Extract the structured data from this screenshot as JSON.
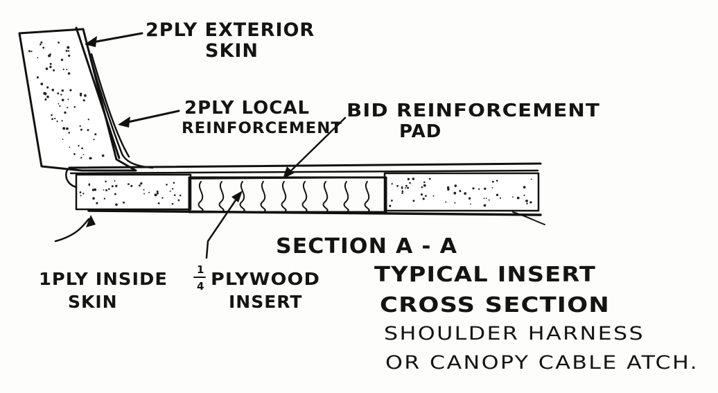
{
  "labels": {
    "exterior_skin": [
      "2PLY EXTERIOR",
      "SKIN"
    ],
    "local_reinforcement": [
      "2PLY LOCAL",
      "REINFORCEMENT"
    ],
    "bid_pad": [
      "BID REINFORCEMENT",
      "PAD"
    ],
    "inside_skin": [
      "1PLY INSIDE",
      "SKIN"
    ],
    "plywood_fraction": {
      "numerator": "1",
      "denominator": "4"
    },
    "plywood_insert": [
      "PLYWOOD",
      "INSERT"
    ],
    "section_title": "SECTION A - A",
    "caption": [
      "TYPICAL INSERT",
      "CROSS SECTION",
      "SHOULDER HARNESS",
      "OR CANOPY CABLE ATCH."
    ]
  },
  "colors": {
    "ink": "#111111",
    "paper": "#fdfdfc"
  }
}
